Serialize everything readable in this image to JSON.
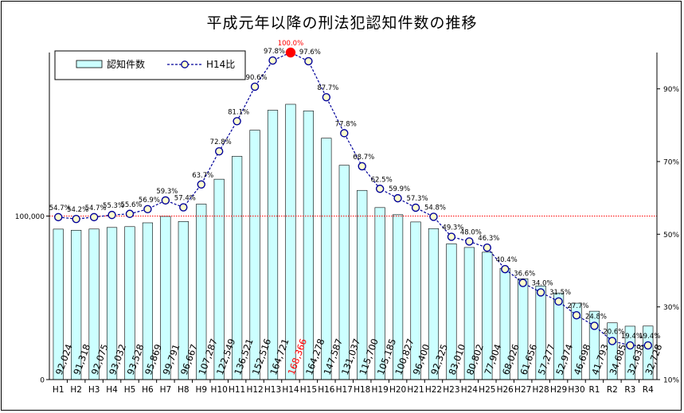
{
  "chart_data": {
    "type": "bar",
    "title": "平成元年以降の刑法犯認知件数の推移",
    "categories": [
      "H1",
      "H2",
      "H3",
      "H4",
      "H5",
      "H6",
      "H7",
      "H8",
      "H9",
      "H10",
      "H11",
      "H12",
      "H13",
      "H14",
      "H15",
      "H16",
      "H17",
      "H18",
      "H19",
      "H20",
      "H21",
      "H22",
      "H23",
      "H24",
      "H25",
      "H26",
      "H27",
      "H28",
      "H29",
      "H30",
      "R1",
      "R2",
      "R3",
      "R4"
    ],
    "series": [
      {
        "name": "認知件数",
        "type": "bar",
        "axis": "left",
        "color": "#ccffff",
        "values": [
          92024,
          91318,
          92075,
          93032,
          93528,
          95869,
          99791,
          96667,
          107287,
          122549,
          136521,
          152516,
          164721,
          168366,
          164278,
          147587,
          131037,
          115700,
          105185,
          100827,
          96400,
          92325,
          83010,
          80802,
          77904,
          68026,
          61656,
          57277,
          52974,
          46698,
          41793,
          34685,
          32638,
          32728
        ],
        "labels": [
          "92,024",
          "91,318",
          "92,075",
          "93,032",
          "93,528",
          "95,869",
          "99,791",
          "96,667",
          "107,287",
          "122,549",
          "136,521",
          "152,516",
          "164,721",
          "168,366",
          "164,278",
          "147,587",
          "131,037",
          "115,700",
          "105,185",
          "100,827",
          "96,400",
          "92,325",
          "83,010",
          "80,802",
          "77,904",
          "68,026",
          "61,656",
          "57,277",
          "52,974",
          "46,698",
          "41,793",
          "34,685",
          "32,638",
          "32,728"
        ]
      },
      {
        "name": "H14比",
        "type": "line",
        "axis": "right",
        "color": "#000099",
        "values": [
          54.7,
          54.2,
          54.7,
          55.3,
          55.6,
          56.9,
          59.3,
          57.4,
          63.7,
          72.8,
          81.1,
          90.6,
          97.8,
          100.0,
          97.6,
          87.7,
          77.8,
          68.7,
          62.5,
          59.9,
          57.3,
          54.8,
          49.3,
          48.0,
          46.3,
          40.4,
          36.6,
          34.0,
          31.5,
          27.7,
          24.8,
          20.6,
          19.4,
          19.4
        ],
        "labels": [
          "54.7%",
          "54.2%",
          "54.7%",
          "55.3%",
          "55.6%",
          "56.9%",
          "59.3%",
          "57.4%",
          "63.7%",
          "72.8%",
          "81.1%",
          "90.6%",
          "97.8%",
          "100.0%",
          "97.6%",
          "87.7%",
          "77.8%",
          "68.7%",
          "62.5%",
          "59.9%",
          "57.3%",
          "54.8%",
          "49.3%",
          "48.0%",
          "46.3%",
          "40.4%",
          "36.6%",
          "34.0%",
          "31.5%",
          "27.7%",
          "24.8%",
          "20.6%",
          "19.4%",
          "19.4%"
        ]
      }
    ],
    "highlight_index": 13,
    "highlight_color": "#ff0000",
    "left_axis": {
      "min": 0,
      "max": 200000,
      "ticks": [
        0,
        100000
      ],
      "tick_labels": [
        "0",
        "100,000"
      ]
    },
    "right_axis": {
      "min": 10,
      "max": 100,
      "ticks": [
        10,
        30,
        50,
        70,
        90
      ],
      "tick_labels": [
        "10%",
        "30%",
        "50%",
        "70%",
        "90%"
      ]
    },
    "reference_line": {
      "value": 100000,
      "axis": "left",
      "color": "#ff0000"
    },
    "grid": false,
    "legend_position": "top-left"
  }
}
